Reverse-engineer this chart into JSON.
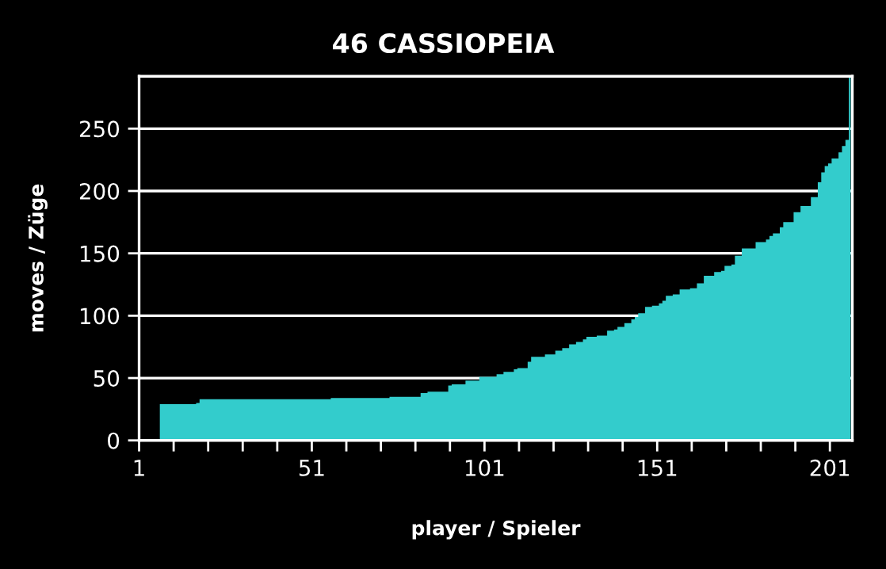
{
  "chart_data": {
    "type": "area",
    "title": "46 CASSIOPEIA",
    "xlabel": "player / Spieler",
    "ylabel": "moves / Züge",
    "color": "#33cccc",
    "grid": "y",
    "legend": false,
    "xlim": [
      1,
      207.5
    ],
    "ylim": [
      0,
      292
    ],
    "xticks": [
      1,
      {
        "value": 11,
        "label": null
      },
      {
        "value": 21,
        "label": null
      },
      {
        "value": 31,
        "label": null
      },
      {
        "value": 41,
        "label": null
      },
      51,
      {
        "value": 61,
        "label": null
      },
      {
        "value": 71,
        "label": null
      },
      {
        "value": 81,
        "label": null
      },
      {
        "value": 91,
        "label": null
      },
      101,
      {
        "value": 111,
        "label": null
      },
      {
        "value": 121,
        "label": null
      },
      {
        "value": 131,
        "label": null
      },
      {
        "value": 141,
        "label": null
      },
      151,
      {
        "value": 161,
        "label": null
      },
      {
        "value": 171,
        "label": null
      },
      {
        "value": 181,
        "label": null
      },
      {
        "value": 191,
        "label": null
      },
      201
    ],
    "yticks": [
      0,
      50,
      100,
      150,
      200,
      250
    ],
    "x": [
      7,
      8,
      9,
      10,
      11,
      12,
      13,
      14,
      15,
      16,
      17,
      18,
      19,
      20,
      21,
      22,
      23,
      24,
      25,
      26,
      27,
      28,
      29,
      30,
      31,
      32,
      33,
      34,
      35,
      36,
      37,
      38,
      39,
      40,
      41,
      42,
      43,
      44,
      45,
      46,
      47,
      48,
      49,
      50,
      51,
      52,
      53,
      54,
      55,
      56,
      57,
      58,
      59,
      60,
      61,
      62,
      63,
      64,
      65,
      66,
      67,
      68,
      69,
      70,
      71,
      72,
      73,
      74,
      75,
      76,
      77,
      78,
      79,
      80,
      81,
      82,
      83,
      84,
      85,
      86,
      87,
      88,
      89,
      90,
      91,
      92,
      93,
      94,
      95,
      96,
      97,
      98,
      99,
      100,
      101,
      102,
      103,
      104,
      105,
      106,
      107,
      108,
      109,
      110,
      111,
      112,
      113,
      114,
      115,
      116,
      117,
      118,
      119,
      120,
      121,
      122,
      123,
      124,
      125,
      126,
      127,
      128,
      129,
      130,
      131,
      132,
      133,
      134,
      135,
      136,
      137,
      138,
      139,
      140,
      141,
      142,
      143,
      144,
      145,
      146,
      147,
      148,
      149,
      150,
      151,
      152,
      153,
      154,
      155,
      156,
      157,
      158,
      159,
      160,
      161,
      162,
      163,
      164,
      165,
      166,
      167,
      168,
      169,
      170,
      171,
      172,
      173,
      174,
      175,
      176,
      177,
      178,
      179,
      180,
      181,
      182,
      183,
      184,
      185,
      186,
      187,
      188,
      189,
      190,
      191,
      192,
      193,
      194,
      195,
      196,
      197,
      198,
      199,
      200,
      201,
      202,
      203,
      204,
      205,
      206,
      207
    ],
    "values": [
      29,
      29,
      29,
      29,
      29,
      29,
      29,
      29,
      29,
      29,
      29,
      30,
      33,
      33,
      33,
      33,
      33,
      33,
      33,
      33,
      33,
      33,
      33,
      33,
      33,
      33,
      33,
      33,
      33,
      33,
      33,
      33,
      33,
      33,
      33,
      33,
      33,
      33,
      33,
      33,
      33,
      33,
      33,
      33,
      33,
      33,
      33,
      33,
      33,
      33,
      34,
      34,
      34,
      34,
      34,
      34,
      34,
      34,
      34,
      34,
      34,
      34,
      34,
      34,
      34,
      34,
      34,
      35,
      35,
      35,
      35,
      35,
      35,
      35,
      35,
      35,
      38,
      38,
      39,
      39,
      39,
      39,
      39,
      39,
      44,
      45,
      45,
      45,
      45,
      48,
      48,
      48,
      48,
      51,
      51,
      51,
      51,
      51,
      53,
      53,
      55,
      55,
      55,
      57,
      58,
      58,
      58,
      63,
      67,
      67,
      67,
      67,
      69,
      69,
      69,
      72,
      72,
      74,
      74,
      77,
      77,
      79,
      79,
      81,
      83,
      83,
      83,
      84,
      84,
      84,
      88,
      88,
      89,
      91,
      91,
      94,
      94,
      97,
      99,
      102,
      102,
      107,
      107,
      108,
      108,
      110,
      112,
      116,
      116,
      117,
      117,
      121,
      121,
      121,
      122,
      122,
      126,
      126,
      132,
      132,
      132,
      135,
      135,
      136,
      140,
      140,
      141,
      148,
      148,
      154,
      154,
      154,
      154,
      159,
      159,
      159,
      161,
      164,
      166,
      166,
      171,
      175,
      175,
      175,
      183,
      183,
      188,
      188,
      188,
      195,
      195,
      207,
      215,
      220,
      222,
      226,
      226,
      231,
      236,
      241,
      292
    ]
  }
}
